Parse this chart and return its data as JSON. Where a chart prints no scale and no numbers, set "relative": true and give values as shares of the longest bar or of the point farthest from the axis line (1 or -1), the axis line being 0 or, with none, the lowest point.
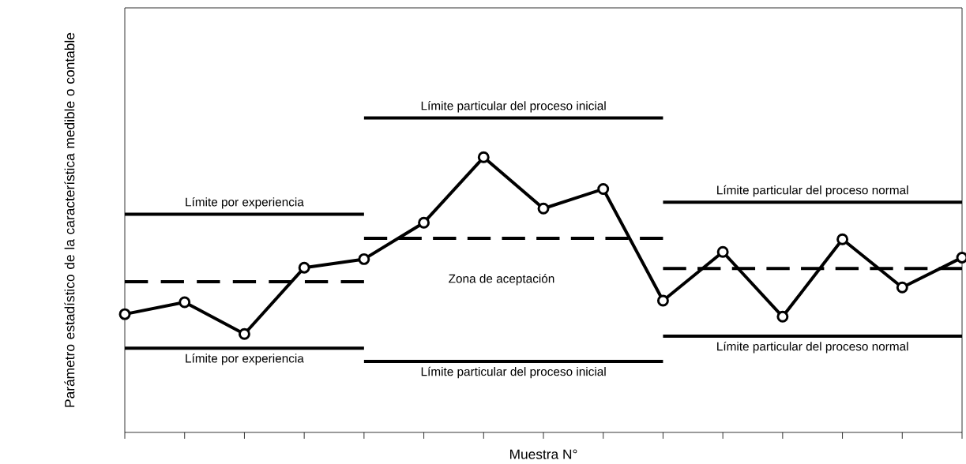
{
  "chart_data": {
    "type": "line",
    "relative": true,
    "xlabel": "Muestra N°",
    "ylabel": "Parámetro estadístico de la característica medible o contable",
    "categories": [
      null,
      null,
      null,
      null,
      null,
      null,
      null,
      null,
      null,
      null,
      null,
      null,
      null,
      null,
      null
    ],
    "series": [
      {
        "color": "#000000",
        "marker": "circle",
        "line_style": "solid",
        "values": [
          0.376,
          0.414,
          0.313,
          0.524,
          0.551,
          0.667,
          0.875,
          0.712,
          0.774,
          0.419,
          0.574,
          0.368,
          0.614,
          0.461,
          0.556
        ]
      },
      {
        "name": "Límite por experiencia",
        "color": "#000000",
        "marker": "none",
        "line_style": "solid",
        "values": [
          0.694,
          0.694,
          0.694,
          0.694,
          0.694,
          null,
          null,
          null,
          null,
          null,
          null,
          null,
          null,
          null,
          null
        ]
      },
      {
        "color": "#000000",
        "marker": "none",
        "line_style": "dashed",
        "values": [
          0.479,
          0.479,
          0.479,
          0.479,
          0.479,
          null,
          null,
          null,
          null,
          null,
          null,
          null,
          null,
          null,
          null
        ]
      },
      {
        "name": "Límite por experiencia",
        "color": "#000000",
        "marker": "none",
        "line_style": "solid",
        "values": [
          0.268,
          0.268,
          0.268,
          0.268,
          0.268,
          null,
          null,
          null,
          null,
          null,
          null,
          null,
          null,
          null,
          null
        ]
      },
      {
        "name": "Límite particular del proceso inicial",
        "color": "#000000",
        "marker": "none",
        "line_style": "solid",
        "values": [
          null,
          null,
          null,
          null,
          1.0,
          1.0,
          1.0,
          1.0,
          1.0,
          1.0,
          null,
          null,
          null,
          null,
          null
        ]
      },
      {
        "color": "#000000",
        "marker": "none",
        "line_style": "dashed",
        "values": [
          null,
          null,
          null,
          null,
          0.617,
          0.617,
          0.617,
          0.617,
          0.617,
          0.617,
          null,
          null,
          null,
          null,
          null
        ]
      },
      {
        "name": "Límite particular del proceso inicial",
        "color": "#000000",
        "marker": "none",
        "line_style": "solid",
        "values": [
          null,
          null,
          null,
          null,
          0.226,
          0.226,
          0.226,
          0.226,
          0.226,
          0.226,
          null,
          null,
          null,
          null,
          null
        ]
      },
      {
        "name": "Límite particular del proceso normal",
        "color": "#000000",
        "marker": "none",
        "line_style": "solid",
        "values": [
          null,
          null,
          null,
          null,
          null,
          null,
          null,
          null,
          null,
          0.732,
          0.732,
          0.732,
          0.732,
          0.732,
          0.732
        ]
      },
      {
        "color": "#000000",
        "marker": "none",
        "line_style": "dashed",
        "values": [
          null,
          null,
          null,
          null,
          null,
          null,
          null,
          null,
          null,
          0.521,
          0.521,
          0.521,
          0.521,
          0.521,
          0.521
        ]
      },
      {
        "name": "Límite particular del proceso normal",
        "color": "#000000",
        "marker": "none",
        "line_style": "solid",
        "values": [
          null,
          null,
          null,
          null,
          null,
          null,
          null,
          null,
          null,
          0.306,
          0.306,
          0.306,
          0.306,
          0.306,
          0.306
        ]
      }
    ],
    "annotations": [
      "Zona de aceptación"
    ]
  }
}
